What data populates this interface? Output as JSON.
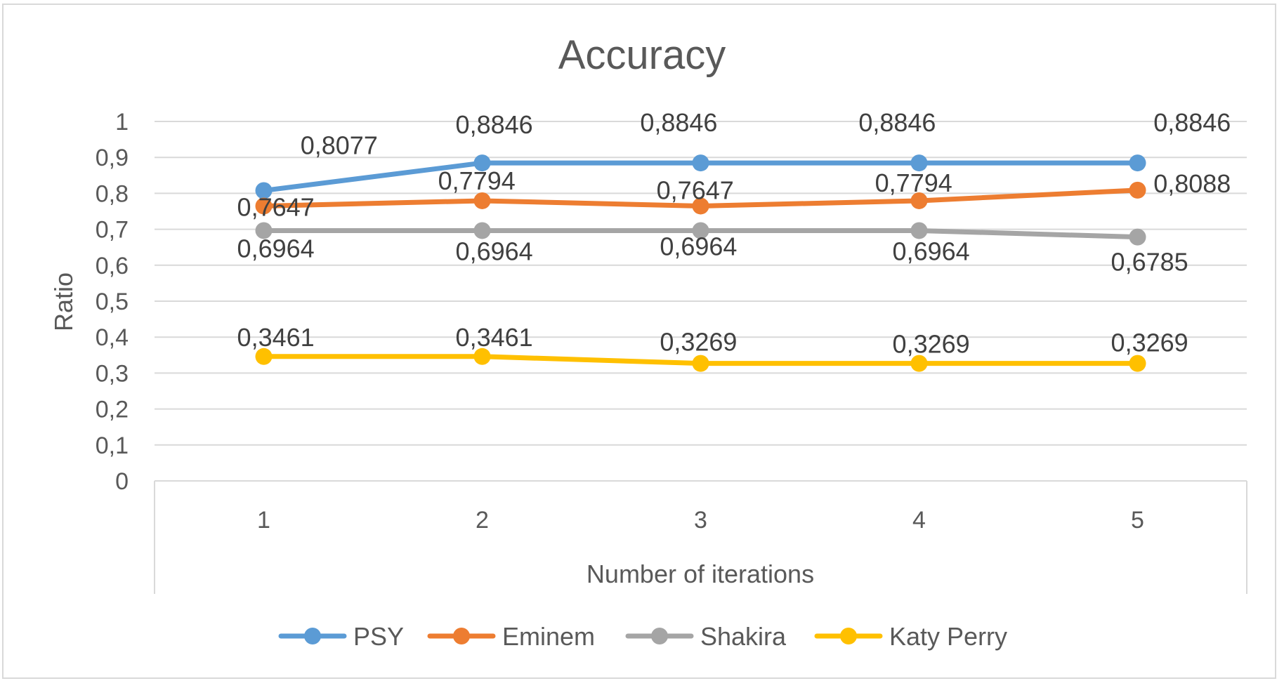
{
  "chart_data": {
    "type": "line",
    "title": "Accuracy",
    "xlabel": "Number of iterations",
    "ylabel": "Ratio",
    "categories": [
      "1",
      "2",
      "3",
      "4",
      "5"
    ],
    "ylim": [
      0,
      1
    ],
    "yticks": [
      "0",
      "0,1",
      "0,2",
      "0,3",
      "0,4",
      "0,5",
      "0,6",
      "0,7",
      "0,8",
      "0,9",
      "1"
    ],
    "grid": true,
    "legend_position": "bottom",
    "series": [
      {
        "name": "PSY",
        "color": "#5b9bd5",
        "values": [
          0.8077,
          0.8846,
          0.8846,
          0.8846,
          0.8846
        ],
        "labels": [
          "0,8077",
          "0,8846",
          "0,8846",
          "0,8846",
          "0,8846"
        ]
      },
      {
        "name": "Eminem",
        "color": "#ed7d31",
        "values": [
          0.7647,
          0.7794,
          0.7647,
          0.7794,
          0.8088
        ],
        "labels": [
          "0,7647",
          "0,7794",
          "0,7647",
          "0,7794",
          "0,8088"
        ]
      },
      {
        "name": "Shakira",
        "color": "#a5a5a5",
        "values": [
          0.6964,
          0.6964,
          0.6964,
          0.6964,
          0.6785
        ],
        "labels": [
          "0,6964",
          "0,6964",
          "0,6964",
          "0,6964",
          "0,6785"
        ]
      },
      {
        "name": "Katy Perry",
        "color": "#ffc000",
        "values": [
          0.3461,
          0.3461,
          0.3269,
          0.3269,
          0.3269
        ],
        "labels": [
          "0,3461",
          "0,3461",
          "0,3269",
          "0,3269",
          "0,3269"
        ]
      }
    ]
  }
}
